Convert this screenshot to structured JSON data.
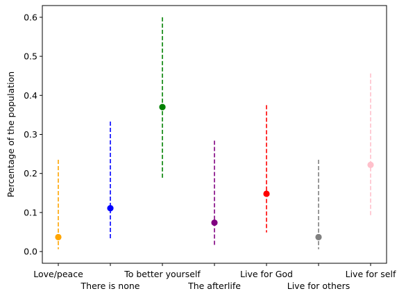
{
  "chart_data": {
    "type": "errorbar",
    "title": "",
    "xlabel": "",
    "ylabel": "Percentage of the population",
    "ylim": [
      -0.03,
      0.63
    ],
    "yticks": [
      0.0,
      0.1,
      0.2,
      0.3,
      0.4,
      0.5,
      0.6
    ],
    "ytick_labels": [
      "0.0",
      "0.1",
      "0.2",
      "0.3",
      "0.4",
      "0.5",
      "0.6"
    ],
    "grid": false,
    "error_style": "dashed",
    "categories": [
      "Love/peace",
      "There is none",
      "To better yourself",
      "The afterlife",
      "Live for God",
      "Live for others",
      "Live for self"
    ],
    "points": [
      {
        "category": "Love/peace",
        "value": 0.037,
        "low": 0.006,
        "high": 0.235,
        "color": "#ffa500"
      },
      {
        "category": "There is none",
        "value": 0.111,
        "low": 0.032,
        "high": 0.333,
        "color": "#0000ff"
      },
      {
        "category": "To better yourself",
        "value": 0.37,
        "low": 0.186,
        "high": 0.6,
        "color": "#008000"
      },
      {
        "category": "The afterlife",
        "value": 0.074,
        "low": 0.017,
        "high": 0.284,
        "color": "#800080"
      },
      {
        "category": "Live for God",
        "value": 0.148,
        "low": 0.049,
        "high": 0.375,
        "color": "#ff0000"
      },
      {
        "category": "Live for others",
        "value": 0.037,
        "low": 0.006,
        "high": 0.235,
        "color": "#808080"
      },
      {
        "category": "Live for self",
        "value": 0.222,
        "low": 0.089,
        "high": 0.456,
        "color": "#ffc0cb"
      }
    ]
  }
}
